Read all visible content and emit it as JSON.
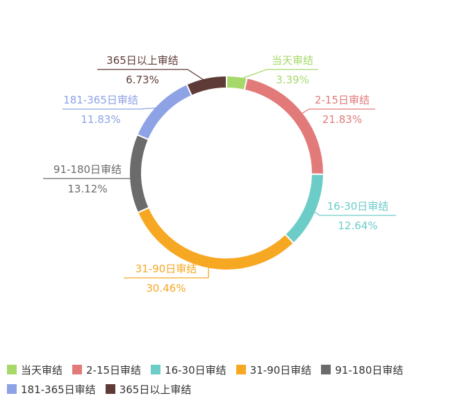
{
  "chart_data": {
    "type": "pie",
    "style": "donut",
    "categories": [
      "当天审结",
      "2-15日审结",
      "16-30日审结",
      "31-90日审结",
      "91-180日审结",
      "181-365日审结",
      "365日以上审结"
    ],
    "values": [
      3.39,
      21.83,
      12.64,
      30.46,
      13.12,
      11.83,
      6.73
    ],
    "value_labels": [
      "3.39%",
      "21.83%",
      "12.64%",
      "30.46%",
      "13.12%",
      "11.83%",
      "6.73%"
    ],
    "colors": [
      "#a6d96a",
      "#e27a7a",
      "#6cccc8",
      "#f7a823",
      "#6b6b6b",
      "#8ea2e6",
      "#5e3b36"
    ],
    "legend_position": "bottom",
    "title": ""
  }
}
